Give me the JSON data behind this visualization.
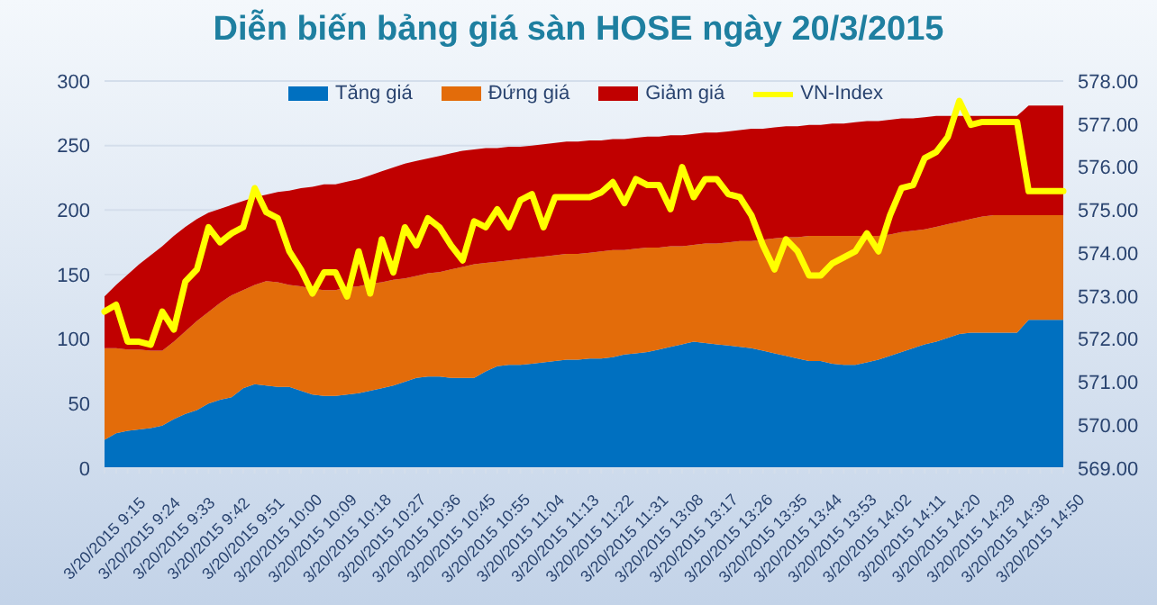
{
  "chart_data": {
    "type": "area",
    "title": "Diễn biến bảng giá sàn HOSE ngày 20/3/2015",
    "stacked": true,
    "categories": [
      "3/20/2015 9:15",
      null,
      null,
      "3/20/2015 9:24",
      null,
      null,
      "3/20/2015 9:33",
      null,
      null,
      "3/20/2015 9:42",
      null,
      null,
      "3/20/2015 9:51",
      null,
      null,
      "3/20/2015 10:00",
      null,
      null,
      "3/20/2015 10:09",
      null,
      null,
      "3/20/2015 10:18",
      null,
      null,
      "3/20/2015 10:27",
      null,
      null,
      "3/20/2015 10:36",
      null,
      null,
      "3/20/2015 10:45",
      null,
      null,
      "3/20/2015 10:55",
      null,
      null,
      "3/20/2015 11:04",
      null,
      null,
      "3/20/2015 11:13",
      null,
      null,
      "3/20/2015 11:22",
      null,
      null,
      "3/20/2015 11:31",
      null,
      null,
      "3/20/2015 13:08",
      null,
      null,
      "3/20/2015 13:17",
      null,
      null,
      "3/20/2015 13:26",
      null,
      null,
      "3/20/2015 13:35",
      null,
      null,
      "3/20/2015 13:44",
      null,
      null,
      "3/20/2015 13:53",
      null,
      null,
      "3/20/2015 14:02",
      null,
      null,
      "3/20/2015 14:11",
      null,
      null,
      "3/20/2015 14:20",
      null,
      null,
      "3/20/2015 14:29",
      null,
      null,
      "3/20/2015 14:38",
      null,
      null,
      "3/20/2015 14:50",
      null,
      null
    ],
    "series": [
      {
        "name": "Tăng giá",
        "color": "#0070c0",
        "values": [
          22,
          27,
          29,
          30,
          31,
          33,
          38,
          42,
          45,
          50,
          53,
          55,
          62,
          65,
          64,
          63,
          63,
          60,
          57,
          56,
          56,
          57,
          58,
          60,
          62,
          64,
          67,
          70,
          71,
          71,
          70,
          70,
          70,
          75,
          79,
          80,
          80,
          81,
          82,
          83,
          84,
          84,
          85,
          85,
          86,
          88,
          89,
          90,
          92,
          94,
          96,
          98,
          97,
          96,
          95,
          94,
          93,
          91,
          89,
          87,
          85,
          83,
          83,
          81,
          80,
          80,
          82,
          84,
          87,
          90,
          93,
          96,
          98,
          101,
          104,
          105,
          105,
          105,
          105,
          105,
          115,
          115,
          115,
          115
        ]
      },
      {
        "name": "Đứng giá",
        "color": "#e36c0a",
        "values": [
          71,
          66,
          63,
          62,
          60,
          58,
          60,
          64,
          69,
          71,
          75,
          79,
          76,
          77,
          81,
          81,
          79,
          81,
          82,
          82,
          82,
          83,
          83,
          83,
          82,
          82,
          80,
          79,
          80,
          81,
          84,
          86,
          88,
          84,
          81,
          81,
          82,
          82,
          82,
          82,
          82,
          82,
          82,
          83,
          83,
          81,
          81,
          81,
          79,
          78,
          76,
          75,
          77,
          78,
          80,
          82,
          83,
          86,
          89,
          92,
          94,
          97,
          97,
          99,
          100,
          100,
          98,
          96,
          94,
          93,
          91,
          89,
          89,
          88,
          87,
          88,
          90,
          91,
          91,
          91,
          81,
          81,
          81,
          81
        ]
      },
      {
        "name": "Giảm giá",
        "color": "#c00000",
        "values": [
          40,
          49,
          58,
          66,
          74,
          81,
          82,
          81,
          79,
          77,
          73,
          70,
          69,
          68,
          67,
          70,
          73,
          76,
          79,
          82,
          82,
          82,
          83,
          84,
          86,
          87,
          89,
          89,
          89,
          90,
          90,
          90,
          89,
          89,
          88,
          88,
          87,
          87,
          87,
          87,
          87,
          87,
          87,
          86,
          86,
          86,
          86,
          86,
          86,
          86,
          86,
          86,
          86,
          86,
          86,
          86,
          87,
          86,
          86,
          86,
          86,
          86,
          86,
          87,
          87,
          88,
          89,
          89,
          89,
          88,
          87,
          87,
          86,
          84,
          82,
          80,
          78,
          77,
          77,
          77,
          85,
          85,
          85,
          85
        ]
      },
      {
        "name": "VN-Index",
        "type": "line",
        "axis": "y2",
        "color": "#ffff00",
        "values": [
          572.64,
          572.8,
          571.94,
          571.94,
          571.87,
          572.64,
          572.22,
          573.34,
          573.62,
          574.6,
          574.25,
          574.46,
          574.6,
          575.51,
          574.95,
          574.81,
          574.04,
          573.62,
          573.06,
          573.55,
          573.55,
          572.99,
          574.04,
          573.06,
          574.32,
          573.55,
          574.6,
          574.18,
          574.81,
          574.6,
          574.18,
          573.83,
          574.74,
          574.6,
          575.02,
          574.6,
          575.23,
          575.37,
          574.6,
          575.3,
          575.3,
          575.3,
          575.3,
          575.41,
          575.65,
          575.16,
          575.72,
          575.58,
          575.58,
          575.02,
          576.0,
          575.3,
          575.72,
          575.72,
          575.37,
          575.3,
          574.88,
          574.18,
          573.62,
          574.32,
          574.04,
          573.48,
          573.48,
          573.76,
          573.9,
          574.04,
          574.46,
          574.04,
          574.88,
          575.51,
          575.58,
          576.21,
          576.35,
          576.7,
          577.54,
          576.98,
          577.05,
          577.05,
          577.05,
          577.05,
          575.44,
          575.44,
          575.44,
          575.44
        ]
      }
    ],
    "ylim": [
      0,
      300
    ],
    "yticks": [
      0,
      50,
      100,
      150,
      200,
      250,
      300
    ],
    "y2lim": [
      569,
      578
    ],
    "y2ticks": [
      {
        "value": 569,
        "label": "569.00"
      },
      {
        "value": 570,
        "label": "570.00"
      },
      {
        "value": 571,
        "label": "571.00"
      },
      {
        "value": 572,
        "label": "572.00"
      },
      {
        "value": 573,
        "label": "573.00"
      },
      {
        "value": 574,
        "label": "574.00"
      },
      {
        "value": 575,
        "label": "575.00"
      },
      {
        "value": 576,
        "label": "576.00"
      },
      {
        "value": 577,
        "label": "577.00"
      },
      {
        "value": 578,
        "label": "578.00"
      }
    ],
    "grid": "y",
    "legend": "top"
  }
}
